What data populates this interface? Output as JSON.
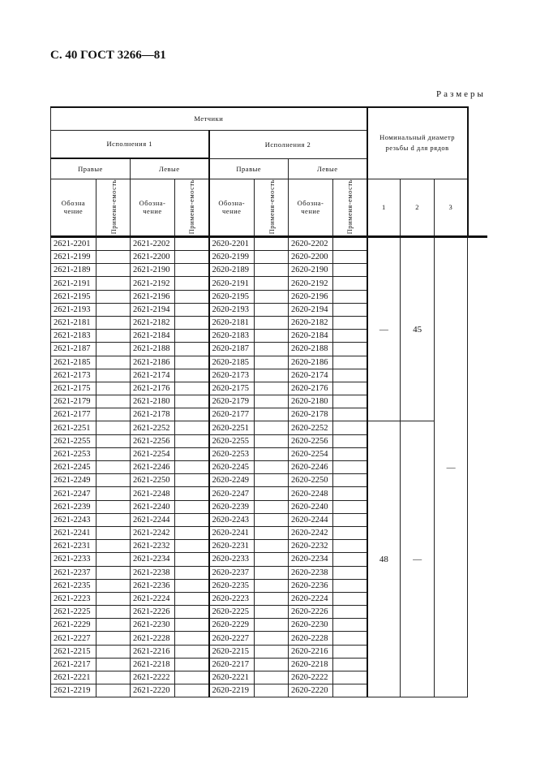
{
  "page_title": "С. 40 ГОСТ 3266—81",
  "sizes_label": "Размеры",
  "header": {
    "taps": "Метчики",
    "execution1": "Исполнения 1",
    "execution2": "Исполнения 2",
    "right": "Правые",
    "left": "Левые",
    "designation1": "Обозна чение",
    "designation": "Обозна-чение",
    "applicability": "Применя-емость",
    "nominal_diameter": "Номинальный диаметр резьбы d для рядов",
    "row1": "1",
    "row2": "2",
    "row3": "3"
  },
  "groups": [
    {
      "series1": "—",
      "series2": "45",
      "rows": [
        [
          "2621-2201",
          "2621-2202",
          "2620-2201",
          "2620-2202"
        ],
        [
          "2621-2199",
          "2621-2200",
          "2620-2199",
          "2620-2200"
        ],
        [
          "2621-2189",
          "2621-2190",
          "2620-2189",
          "2620-2190"
        ],
        [
          "2621-2191",
          "2621-2192",
          "2620-2191",
          "2620-2192"
        ],
        [
          "2621-2195",
          "2621-2196",
          "2620-2195",
          "2620-2196"
        ],
        [
          "2621-2193",
          "2621-2194",
          "2620-2193",
          "2620-2194"
        ],
        [
          "2621-2181",
          "2621-2182",
          "2620-2181",
          "2620-2182"
        ],
        [
          "2621-2183",
          "2621-2184",
          "2620-2183",
          "2620-2184"
        ],
        [
          "2621-2187",
          "2621-2188",
          "2620-2187",
          "2620-2188"
        ],
        [
          "2621-2185",
          "2621-2186",
          "2620-2185",
          "2620-2186"
        ],
        [
          "2621-2173",
          "2621-2174",
          "2620-2173",
          "2620-2174"
        ],
        [
          "2621-2175",
          "2621-2176",
          "2620-2175",
          "2620-2176"
        ],
        [
          "2621-2179",
          "2621-2180",
          "2620-2179",
          "2620-2180"
        ],
        [
          "2621-2177",
          "2621-2178",
          "2620-2177",
          "2620-2178"
        ]
      ]
    },
    {
      "series1": "48",
      "series2": "—",
      "rows": [
        [
          "2621-2251",
          "2621-2252",
          "2620-2251",
          "2620-2252"
        ],
        [
          "2621-2255",
          "2621-2256",
          "2620-2255",
          "2620-2256"
        ],
        [
          "2621-2253",
          "2621-2254",
          "2620-2253",
          "2620-2254"
        ],
        [
          "2621-2245",
          "2621-2246",
          "2620-2245",
          "2620-2246"
        ],
        [
          "2621-2249",
          "2621-2250",
          "2620-2249",
          "2620-2250"
        ],
        [
          "2621-2247",
          "2621-2248",
          "2620-2247",
          "2620-2248"
        ],
        [
          "2621-2239",
          "2621-2240",
          "2620-2239",
          "2620-2240"
        ],
        [
          "2621-2243",
          "2621-2244",
          "2620-2243",
          "2620-2244"
        ],
        [
          "2621-2241",
          "2621-2242",
          "2620-2241",
          "2620-2242"
        ],
        [
          "2621-2231",
          "2621-2232",
          "2620-2231",
          "2620-2232"
        ],
        [
          "2621-2233",
          "2621-2234",
          "2620-2233",
          "2620-2234"
        ],
        [
          "2621-2237",
          "2621-2238",
          "2620-2237",
          "2620-2238"
        ],
        [
          "2621-2235",
          "2621-2236",
          "2620-2235",
          "2620-2236"
        ],
        [
          "2621-2223",
          "2621-2224",
          "2620-2223",
          "2620-2224"
        ],
        [
          "2621-2225",
          "2621-2226",
          "2620-2225",
          "2620-2226"
        ],
        [
          "2621-2229",
          "2621-2230",
          "2620-2229",
          "2620-2230"
        ],
        [
          "2621-2227",
          "2621-2228",
          "2620-2227",
          "2620-2228"
        ],
        [
          "2621-2215",
          "2621-2216",
          "2620-2215",
          "2620-2216"
        ],
        [
          "2621-2217",
          "2621-2218",
          "2620-2217",
          "2620-2218"
        ],
        [
          "2621-2221",
          "2621-2222",
          "2620-2221",
          "2620-2222"
        ],
        [
          "2621-2219",
          "2621-2220",
          "2620-2219",
          "2620-2220"
        ]
      ]
    }
  ],
  "series3": "—"
}
